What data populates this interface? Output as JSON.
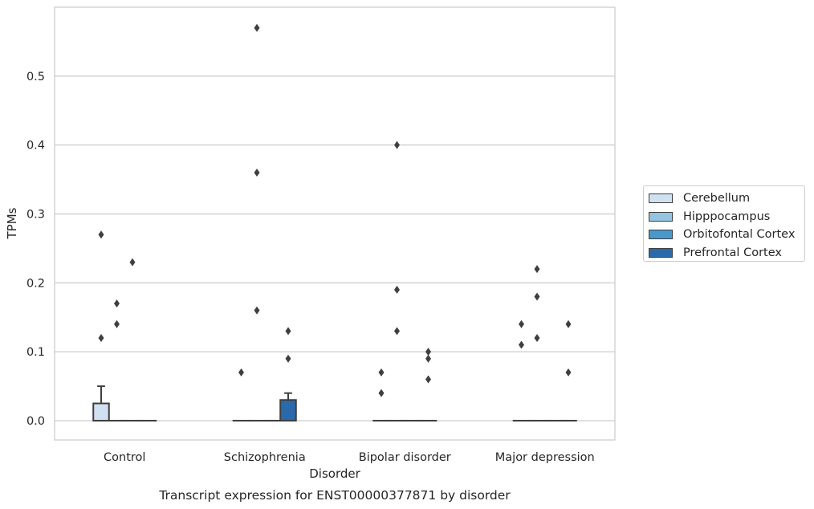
{
  "chart_data": {
    "type": "box",
    "title": "",
    "caption": "Transcript expression for ENST00000377871 by disorder",
    "xlabel": "Disorder",
    "ylabel": "TPMs",
    "ylim": [
      -0.028,
      0.6
    ],
    "yticks": [
      0.0,
      0.1,
      0.2,
      0.3,
      0.4,
      0.5
    ],
    "ytick_labels": [
      "0.0",
      "0.1",
      "0.2",
      "0.3",
      "0.4",
      "0.5"
    ],
    "grid": "horizontal",
    "legend_position": "outside-right",
    "categories": [
      "Control",
      "Schizophrenia",
      "Bipolar disorder",
      "Major depression"
    ],
    "series": [
      {
        "name": "Cerebellum",
        "color": "#d0e1f2",
        "boxes": [
          {
            "q1": 0.0,
            "median": 0.0,
            "q3": 0.025,
            "whisker_low": 0.0,
            "whisker_high": 0.05,
            "outliers": [
              0.27,
              0.12
            ]
          },
          {
            "q1": 0.0,
            "median": 0.0,
            "q3": 0.0,
            "whisker_low": 0.0,
            "whisker_high": 0.0,
            "outliers": [
              0.07
            ]
          },
          {
            "q1": 0.0,
            "median": 0.0,
            "q3": 0.0,
            "whisker_low": 0.0,
            "whisker_high": 0.0,
            "outliers": [
              0.07,
              0.04
            ]
          },
          {
            "q1": 0.0,
            "median": 0.0,
            "q3": 0.0,
            "whisker_low": 0.0,
            "whisker_high": 0.0,
            "outliers": [
              0.14,
              0.11
            ]
          }
        ]
      },
      {
        "name": "Hipppocampus",
        "color": "#94c4df",
        "boxes": [
          {
            "q1": 0.0,
            "median": 0.0,
            "q3": 0.0,
            "whisker_low": 0.0,
            "whisker_high": 0.0,
            "outliers": [
              0.17,
              0.14
            ]
          },
          {
            "q1": 0.0,
            "median": 0.0,
            "q3": 0.0,
            "whisker_low": 0.0,
            "whisker_high": 0.0,
            "outliers": [
              0.57,
              0.36,
              0.16
            ]
          },
          {
            "q1": 0.0,
            "median": 0.0,
            "q3": 0.0,
            "whisker_low": 0.0,
            "whisker_high": 0.0,
            "outliers": [
              0.4,
              0.19,
              0.13
            ]
          },
          {
            "q1": 0.0,
            "median": 0.0,
            "q3": 0.0,
            "whisker_low": 0.0,
            "whisker_high": 0.0,
            "outliers": [
              0.22,
              0.18,
              0.12
            ]
          }
        ]
      },
      {
        "name": "Orbitofontal Cortex",
        "color": "#4a98c9",
        "boxes": [
          {
            "q1": 0.0,
            "median": 0.0,
            "q3": 0.0,
            "whisker_low": 0.0,
            "whisker_high": 0.0,
            "outliers": [
              0.23
            ]
          },
          {
            "q1": 0.0,
            "median": 0.0,
            "q3": 0.0,
            "whisker_low": 0.0,
            "whisker_high": 0.0,
            "outliers": []
          },
          {
            "q1": 0.0,
            "median": 0.0,
            "q3": 0.0,
            "whisker_low": 0.0,
            "whisker_high": 0.0,
            "outliers": []
          },
          {
            "q1": 0.0,
            "median": 0.0,
            "q3": 0.0,
            "whisker_low": 0.0,
            "whisker_high": 0.0,
            "outliers": []
          }
        ]
      },
      {
        "name": "Prefrontal Cortex",
        "color": "#2b6aaa",
        "boxes": [
          {
            "q1": 0.0,
            "median": 0.0,
            "q3": 0.0,
            "whisker_low": 0.0,
            "whisker_high": 0.0,
            "outliers": []
          },
          {
            "q1": 0.0,
            "median": 0.0,
            "q3": 0.03,
            "whisker_low": 0.0,
            "whisker_high": 0.04,
            "outliers": [
              0.13,
              0.09
            ]
          },
          {
            "q1": 0.0,
            "median": 0.0,
            "q3": 0.0,
            "whisker_low": 0.0,
            "whisker_high": 0.0,
            "outliers": [
              0.1,
              0.09,
              0.06
            ]
          },
          {
            "q1": 0.0,
            "median": 0.0,
            "q3": 0.0,
            "whisker_low": 0.0,
            "whisker_high": 0.0,
            "outliers": [
              0.14,
              0.07
            ]
          }
        ]
      }
    ]
  }
}
